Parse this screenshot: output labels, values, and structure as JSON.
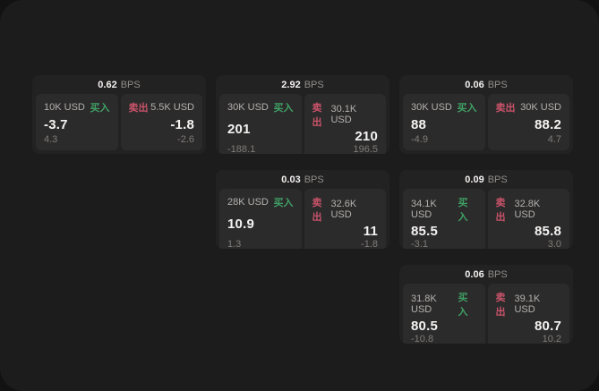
{
  "labels": {
    "bps": "BPS",
    "buy": "买入",
    "sell": "卖出"
  },
  "colors": {
    "buy_green": "#3fa065",
    "sell_red": "#c9536a",
    "window_bg": "#1d1c1c",
    "card_bg": "#232222",
    "panel_bg": "#2c2b2b"
  },
  "cards": [
    {
      "bps": "0.62",
      "col": 1,
      "row": 1,
      "buy": {
        "size": "10K USD",
        "value": "-3.7",
        "sub": "4.3"
      },
      "sell": {
        "size": "5.5K USD",
        "value": "-1.8",
        "sub": "-2.6"
      }
    },
    {
      "bps": "2.92",
      "col": 2,
      "row": 1,
      "buy": {
        "size": "30K USD",
        "value": "201",
        "sub": "-188.1"
      },
      "sell": {
        "size": "30.1K USD",
        "value": "210",
        "sub": "196.5"
      }
    },
    {
      "bps": "0.06",
      "col": 3,
      "row": 1,
      "buy": {
        "size": "30K USD",
        "value": "88",
        "sub": "-4.9"
      },
      "sell": {
        "size": "30K USD",
        "value": "88.2",
        "sub": "4.7"
      }
    },
    {
      "bps": "0.03",
      "col": 2,
      "row": 2,
      "buy": {
        "size": "28K USD",
        "value": "10.9",
        "sub": "1.3"
      },
      "sell": {
        "size": "32.6K USD",
        "value": "11",
        "sub": "-1.8"
      }
    },
    {
      "bps": "0.09",
      "col": 3,
      "row": 2,
      "buy": {
        "size": "34.1K USD",
        "value": "85.5",
        "sub": "-3.1"
      },
      "sell": {
        "size": "32.8K USD",
        "value": "85.8",
        "sub": "3.0"
      }
    },
    {
      "bps": "0.06",
      "col": 3,
      "row": 3,
      "buy": {
        "size": "31.8K USD",
        "value": "80.5",
        "sub": "-10.8"
      },
      "sell": {
        "size": "39.1K USD",
        "value": "80.7",
        "sub": "10.2"
      }
    }
  ]
}
